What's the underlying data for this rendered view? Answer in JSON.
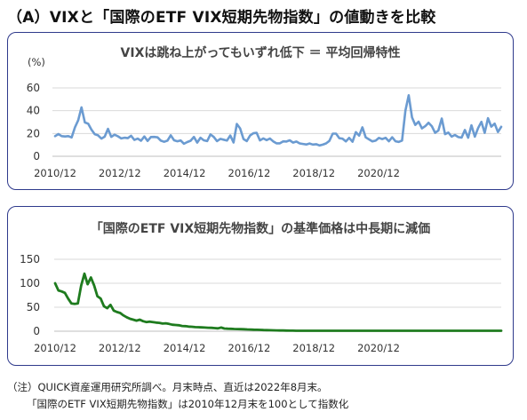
{
  "page": {
    "title": "（A）VIXと「国際のETF VIX短期先物指数」の値動きを比較",
    "note_line1": "（注）QUICK資産運用研究所調べ。月末時点、直近は2022年8月末。",
    "note_line2": "「国際のETF VIX短期先物指数」は2010年12月末を100として指数化"
  },
  "colors": {
    "vix_line": "#6b9bd1",
    "etf_line": "#1e7b1e",
    "panel_border": "#2f3a8c",
    "grid": "#d9d9d9"
  },
  "chart_data": [
    {
      "type": "line",
      "title": "VIXは跳ね上がってもいずれ低下 ＝ 平均回帰特性",
      "ylabel": "(%)",
      "ylim": [
        0,
        60
      ],
      "yticks": [
        "0",
        "20",
        "40",
        "60"
      ],
      "xticks": [
        "2010/12",
        "2012/12",
        "2014/12",
        "2016/12",
        "2018/12",
        "2020/12"
      ],
      "series": [
        {
          "values": [
            17.7,
            19.5,
            17.7,
            17.4,
            17.7,
            16.5,
            25.3,
            31.6,
            42.9,
            29.7,
            28.6,
            23.4,
            19.4,
            18.4,
            15.5,
            17.2,
            24.1,
            17.1,
            18.9,
            17.5,
            15.7,
            16.3,
            15.9,
            18.0,
            14.3,
            15.5,
            13.6,
            17.4,
            13.5,
            16.9,
            17.0,
            16.6,
            13.7,
            12.7,
            13.7,
            18.4,
            14.0,
            13.2,
            13.9,
            11.0,
            12.5,
            13.6,
            17.0,
            12.0,
            16.3,
            14.0,
            13.3,
            19.2,
            17.0,
            13.3,
            15.3,
            14.6,
            13.8,
            18.2,
            12.1,
            28.4,
            24.5,
            15.1,
            13.3,
            18.2,
            20.2,
            20.6,
            13.95,
            15.7,
            14.2,
            15.6,
            13.1,
            11.4,
            11.4,
            13.1,
            12.9,
            14.0,
            11.99,
            12.9,
            11.3,
            10.8,
            10.4,
            11.2,
            10.3,
            10.6,
            9.5,
            10.2,
            11.3,
            13.5,
            19.9,
            19.9,
            15.9,
            15.4,
            13.0,
            16.1,
            12.8,
            21.2,
            18.1,
            25.4,
            16.6,
            14.8,
            13.1,
            13.7,
            16.1,
            15.1,
            16.2,
            13.2,
            16.7,
            13.2,
            12.6,
            13.8,
            40.1,
            53.5,
            34.2,
            27.5,
            30.4,
            24.5,
            26.4,
            29.4,
            26.4,
            20.6,
            22.7,
            33.1,
            19.4,
            20.8,
            17.3,
            18.7,
            16.8,
            16.4,
            23.1,
            16.3,
            27.2,
            17.2,
            24.8,
            30.2,
            20.6,
            33.4,
            26.0,
            28.7,
            21.3,
            25.9
          ]
        }
      ]
    },
    {
      "type": "line",
      "title": "「国際のETF VIX短期先物指数」の基準価格は中長期に減価",
      "ylim": [
        0,
        150
      ],
      "yticks": [
        "0",
        "50",
        "100",
        "150"
      ],
      "xticks": [
        "2010/12",
        "2012/12",
        "2014/12",
        "2016/12",
        "2018/12",
        "2020/12"
      ],
      "series": [
        {
          "values": [
            100,
            85,
            83,
            80,
            68,
            58,
            57,
            58,
            95,
            120,
            98,
            112,
            95,
            73,
            68,
            52,
            48,
            55,
            43,
            40,
            38,
            33,
            29,
            26,
            24,
            22,
            24,
            21,
            19,
            20,
            19,
            18,
            17.5,
            16,
            16.5,
            15.2,
            13.5,
            13,
            12.5,
            11,
            10.5,
            9.6,
            9.2,
            8.5,
            8.3,
            8,
            7.5,
            7.2,
            7,
            6.5,
            6,
            7.5,
            5.5,
            5.2,
            5,
            4.7,
            4.5,
            4.2,
            4,
            3.7,
            3.5,
            3.2,
            3,
            2.8,
            2.5,
            2.3,
            2.1,
            1.9,
            1.7,
            1.5,
            1.4,
            1.3,
            1.2,
            1.1,
            1,
            1,
            1,
            1,
            1,
            1,
            1,
            1,
            1,
            1,
            1,
            1,
            1,
            1,
            1,
            1,
            1,
            1,
            1,
            1,
            1,
            1,
            1,
            1,
            1,
            1,
            1,
            1,
            1,
            1,
            1,
            1,
            1,
            1,
            1,
            1,
            1,
            1,
            1,
            1,
            1,
            1,
            1,
            1,
            1,
            1,
            1,
            1,
            1,
            1,
            1,
            1,
            1,
            1,
            1,
            1,
            1,
            1,
            1,
            1,
            1,
            1,
            1,
            1
          ]
        }
      ]
    }
  ]
}
